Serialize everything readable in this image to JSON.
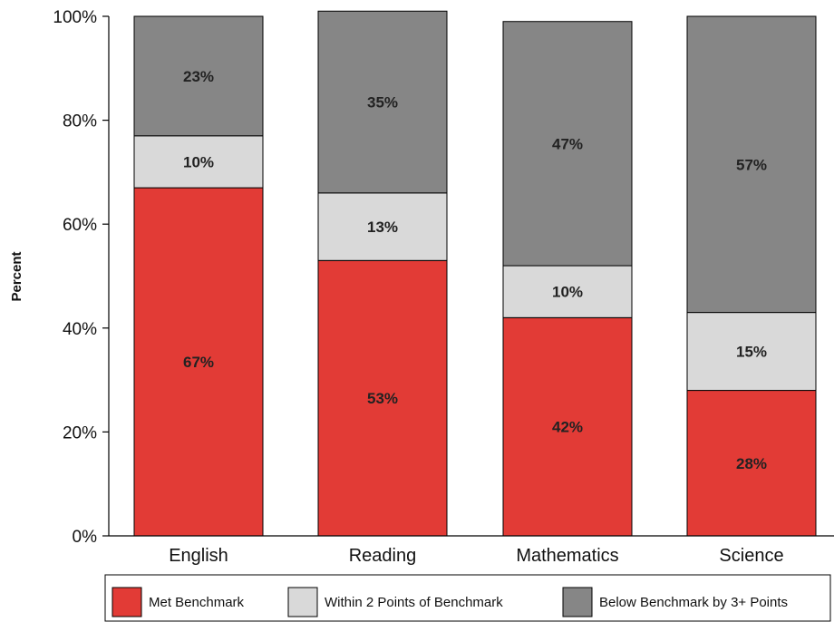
{
  "chart_data": {
    "type": "bar",
    "stacked": true,
    "categories": [
      "English",
      "Reading",
      "Mathematics",
      "Science"
    ],
    "series": [
      {
        "name": "Met Benchmark",
        "values": [
          67,
          53,
          42,
          28
        ],
        "color": "#e23b36"
      },
      {
        "name": "Within 2 Points of Benchmark",
        "values": [
          10,
          13,
          10,
          15
        ],
        "color": "#d9d9d9"
      },
      {
        "name": "Below Benchmark by 3+ Points",
        "values": [
          23,
          35,
          47,
          57
        ],
        "color": "#868686"
      }
    ],
    "data_labels": [
      [
        "67%",
        "53%",
        "42%",
        "28%"
      ],
      [
        "10%",
        "13%",
        "10%",
        "15%"
      ],
      [
        "23%",
        "35%",
        "47%",
        "57%"
      ]
    ],
    "ylabel": "Percent",
    "xlabel": "",
    "ylim": [
      0,
      100
    ],
    "yticks": [
      0,
      20,
      40,
      60,
      80,
      100
    ],
    "ytick_labels": [
      "0%",
      "20%",
      "40%",
      "60%",
      "80%",
      "100%"
    ],
    "legend_position": "bottom",
    "grid": false
  }
}
